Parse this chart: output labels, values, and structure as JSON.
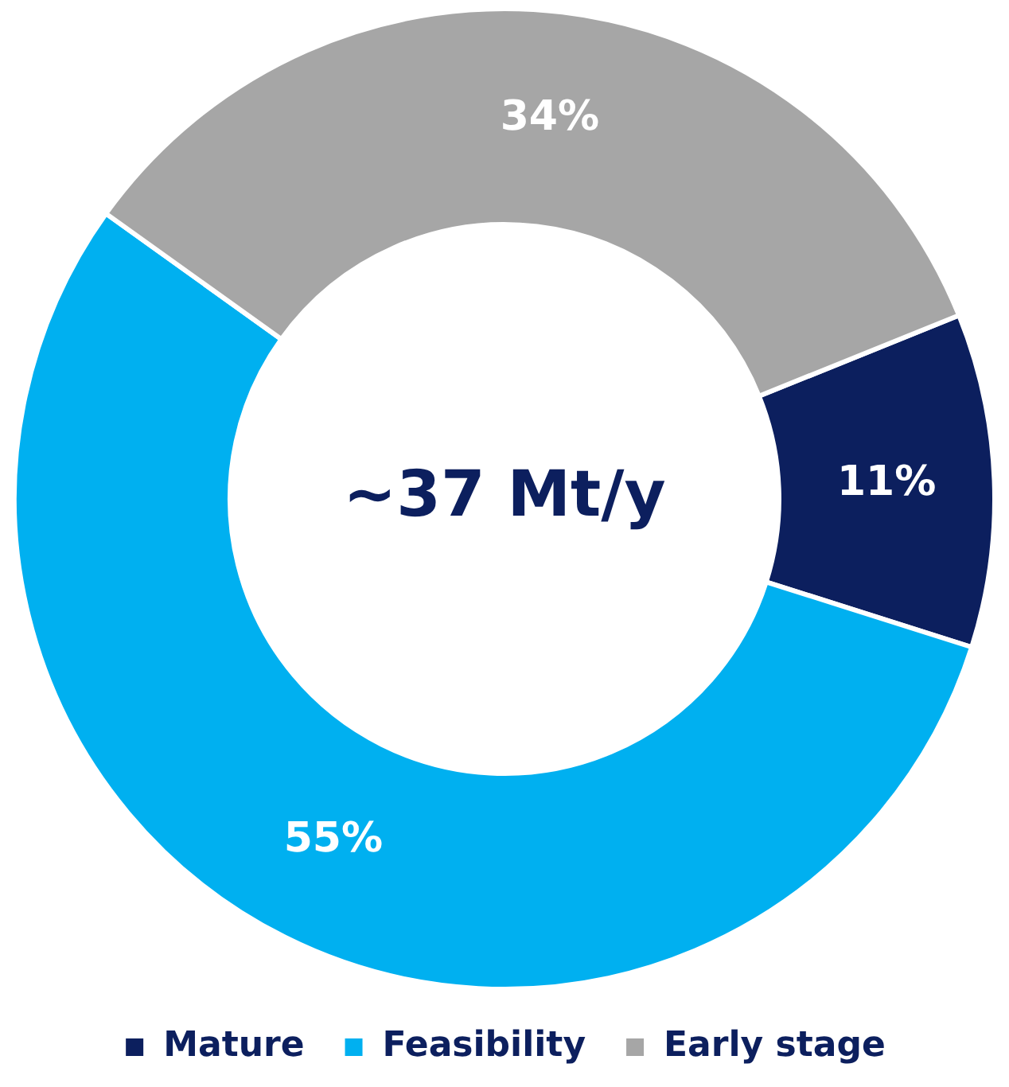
{
  "chart_data": {
    "type": "donut",
    "categories": [
      "Mature",
      "Feasibility",
      "Early stage"
    ],
    "values": [
      11,
      55,
      34
    ],
    "colors": [
      "#0c1f5e",
      "#00b0f0",
      "#a6a6a6"
    ],
    "value_labels": [
      "11%",
      "55%",
      "34%"
    ],
    "annotations": [
      "~37 Mt/y"
    ],
    "legend": "bottom"
  }
}
